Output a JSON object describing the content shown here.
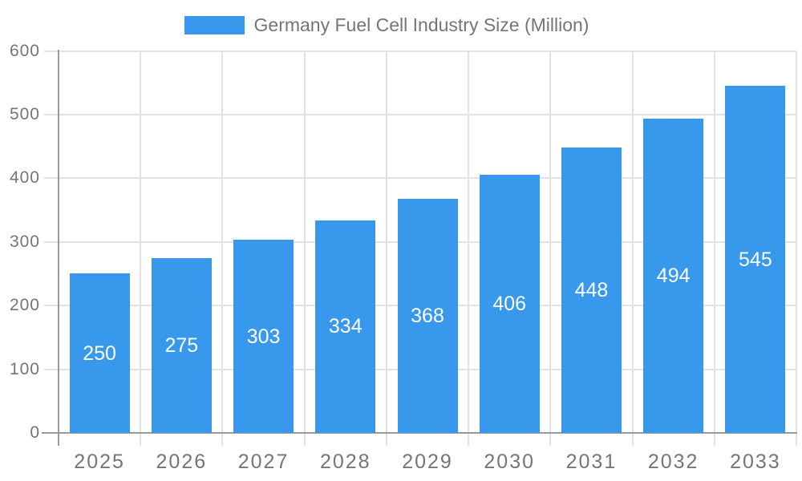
{
  "legend": {
    "label": "Germany Fuel Cell Industry Size (Million)"
  },
  "chart_data": {
    "type": "bar",
    "title": "Germany Fuel Cell Industry Size (Million)",
    "categories": [
      "2025",
      "2026",
      "2027",
      "2028",
      "2029",
      "2030",
      "2031",
      "2032",
      "2033"
    ],
    "values": [
      250,
      275,
      303,
      334,
      368,
      406,
      448,
      494,
      545
    ],
    "xlabel": "",
    "ylabel": "",
    "ylim": [
      0,
      600
    ],
    "yticks": [
      0,
      100,
      200,
      300,
      400,
      500,
      600
    ],
    "grid": true,
    "legend_position": "top",
    "value_labels": "centered-inside-bars"
  },
  "colors": {
    "bar": "#3899ec",
    "grid": "#e2e2e2",
    "axis": "#9a9a9a",
    "tick_text": "#757575",
    "title_text": "#757575",
    "value_text": "#ffffff",
    "background": "#ffffff"
  }
}
